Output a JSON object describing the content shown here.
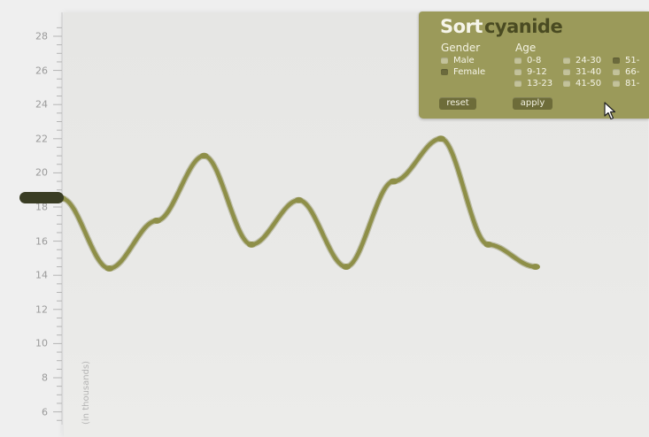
{
  "app": {
    "brand_part1": "Sort",
    "brand_part2": "cyanide"
  },
  "filters": {
    "gender_heading": "Gender",
    "gender_options": [
      {
        "label": "Male",
        "checked": false
      },
      {
        "label": "Female",
        "checked": true
      }
    ],
    "age_heading": "Age",
    "age_options": [
      {
        "label": "0-8",
        "checked": false
      },
      {
        "label": "9-12",
        "checked": false
      },
      {
        "label": "13-23",
        "checked": false
      },
      {
        "label": "24-30",
        "checked": false
      },
      {
        "label": "31-40",
        "checked": false
      },
      {
        "label": "41-50",
        "checked": false
      },
      {
        "label": "51-",
        "checked": true
      },
      {
        "label": "66-",
        "checked": false
      },
      {
        "label": "81-",
        "checked": false
      }
    ],
    "reset_label": "reset",
    "apply_label": "apply"
  },
  "colors": {
    "series": "#8e8f48",
    "series_dark": "#6f7035",
    "panel": "#9b9a5a",
    "marker": "#3a3d24"
  },
  "chart_data": {
    "type": "line",
    "title": "",
    "ylabel": "(in thousands)",
    "xlabel": "",
    "ylim": [
      5,
      29
    ],
    "yticks": [
      6,
      8,
      10,
      12,
      14,
      16,
      18,
      20,
      22,
      24,
      26,
      28
    ],
    "grid": false,
    "series": [
      {
        "values": [
          18.5,
          14.4,
          17.2,
          21.0,
          15.8,
          18.4,
          14.5,
          19.5,
          22.0,
          15.8,
          14.5
        ]
      }
    ],
    "highlight_value": 18.5
  }
}
